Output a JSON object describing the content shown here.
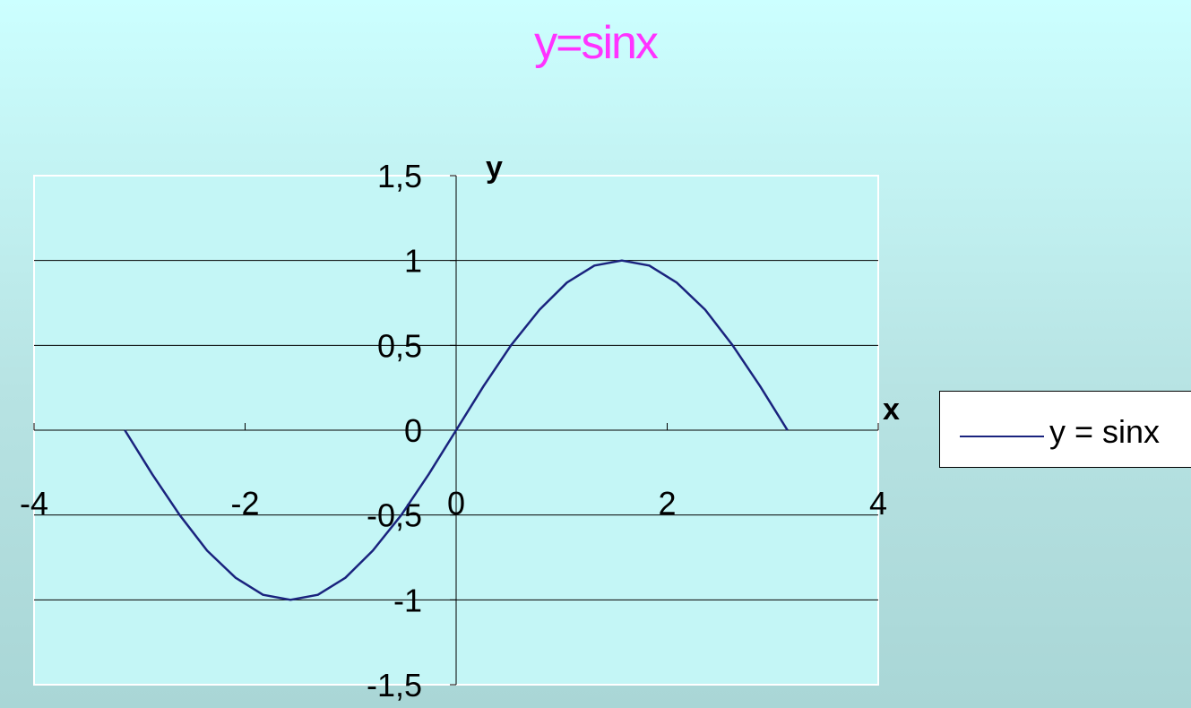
{
  "chart_data": {
    "type": "line",
    "title": "y=sinx",
    "xlabel": "x",
    "ylabel": "y",
    "xlim": [
      -4,
      4
    ],
    "ylim": [
      -1.5,
      1.5
    ],
    "x_ticks": [
      -4,
      -2,
      0,
      2,
      4
    ],
    "x_tick_labels": [
      "-4",
      "-2",
      "0",
      "2",
      "4"
    ],
    "y_ticks": [
      1.5,
      1,
      0.5,
      0,
      -0.5,
      -1,
      -1.5
    ],
    "y_tick_labels": [
      "1,5",
      "1",
      "0,5",
      "0",
      "-0,5",
      "-1",
      "-1,5"
    ],
    "grid": "horizontal",
    "legend_position": "right",
    "colors": {
      "series": "#1a237e",
      "title": "#ff33ff",
      "plot_area": "#c4f6f6"
    },
    "series": [
      {
        "name": "y = sinx",
        "x": [
          -3.14,
          -2.88,
          -2.62,
          -2.36,
          -2.09,
          -1.83,
          -1.57,
          -1.31,
          -1.05,
          -0.79,
          -0.52,
          -0.26,
          0,
          0.26,
          0.52,
          0.79,
          1.05,
          1.31,
          1.57,
          1.83,
          2.09,
          2.36,
          2.62,
          2.88,
          3.14
        ],
        "y": [
          0,
          -0.26,
          -0.5,
          -0.71,
          -0.87,
          -0.97,
          -1,
          -0.97,
          -0.87,
          -0.71,
          -0.5,
          -0.26,
          0,
          0.26,
          0.5,
          0.71,
          0.87,
          0.97,
          1,
          0.97,
          0.87,
          0.71,
          0.5,
          0.26,
          0
        ]
      }
    ]
  }
}
